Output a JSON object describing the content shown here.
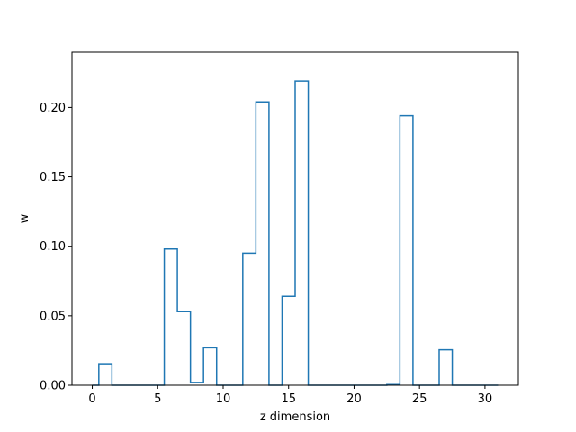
{
  "chart_data": {
    "type": "line",
    "drawstyle": "steps-mid",
    "title": "",
    "xlabel": "z dimension",
    "ylabel": "w",
    "xlim": [
      -1.55,
      32.55
    ],
    "ylim": [
      0,
      0.2398
    ],
    "xticks": [
      0,
      5,
      10,
      15,
      20,
      25,
      30
    ],
    "xtick_labels": [
      "0",
      "5",
      "10",
      "15",
      "20",
      "25",
      "30"
    ],
    "yticks": [
      0.0,
      0.05,
      0.1,
      0.15,
      0.2
    ],
    "ytick_labels": [
      "0.00",
      "0.05",
      "0.10",
      "0.15",
      "0.20"
    ],
    "grid": false,
    "series": [
      {
        "color": "#1f77b4",
        "x": [
          0,
          1,
          2,
          3,
          4,
          5,
          6,
          7,
          8,
          9,
          10,
          11,
          12,
          13,
          14,
          15,
          16,
          17,
          18,
          19,
          20,
          21,
          22,
          23,
          24,
          25,
          26,
          27,
          28,
          29,
          30,
          31
        ],
        "y": [
          0,
          0.0155,
          0,
          0,
          0,
          0,
          0.098,
          0.053,
          0.002,
          0.027,
          0,
          0,
          0.095,
          0.204,
          0,
          0.064,
          0.219,
          0,
          0,
          0,
          0,
          0,
          0,
          0.0005,
          0.194,
          0,
          0,
          0.0255,
          0,
          0,
          0,
          0
        ]
      }
    ]
  }
}
